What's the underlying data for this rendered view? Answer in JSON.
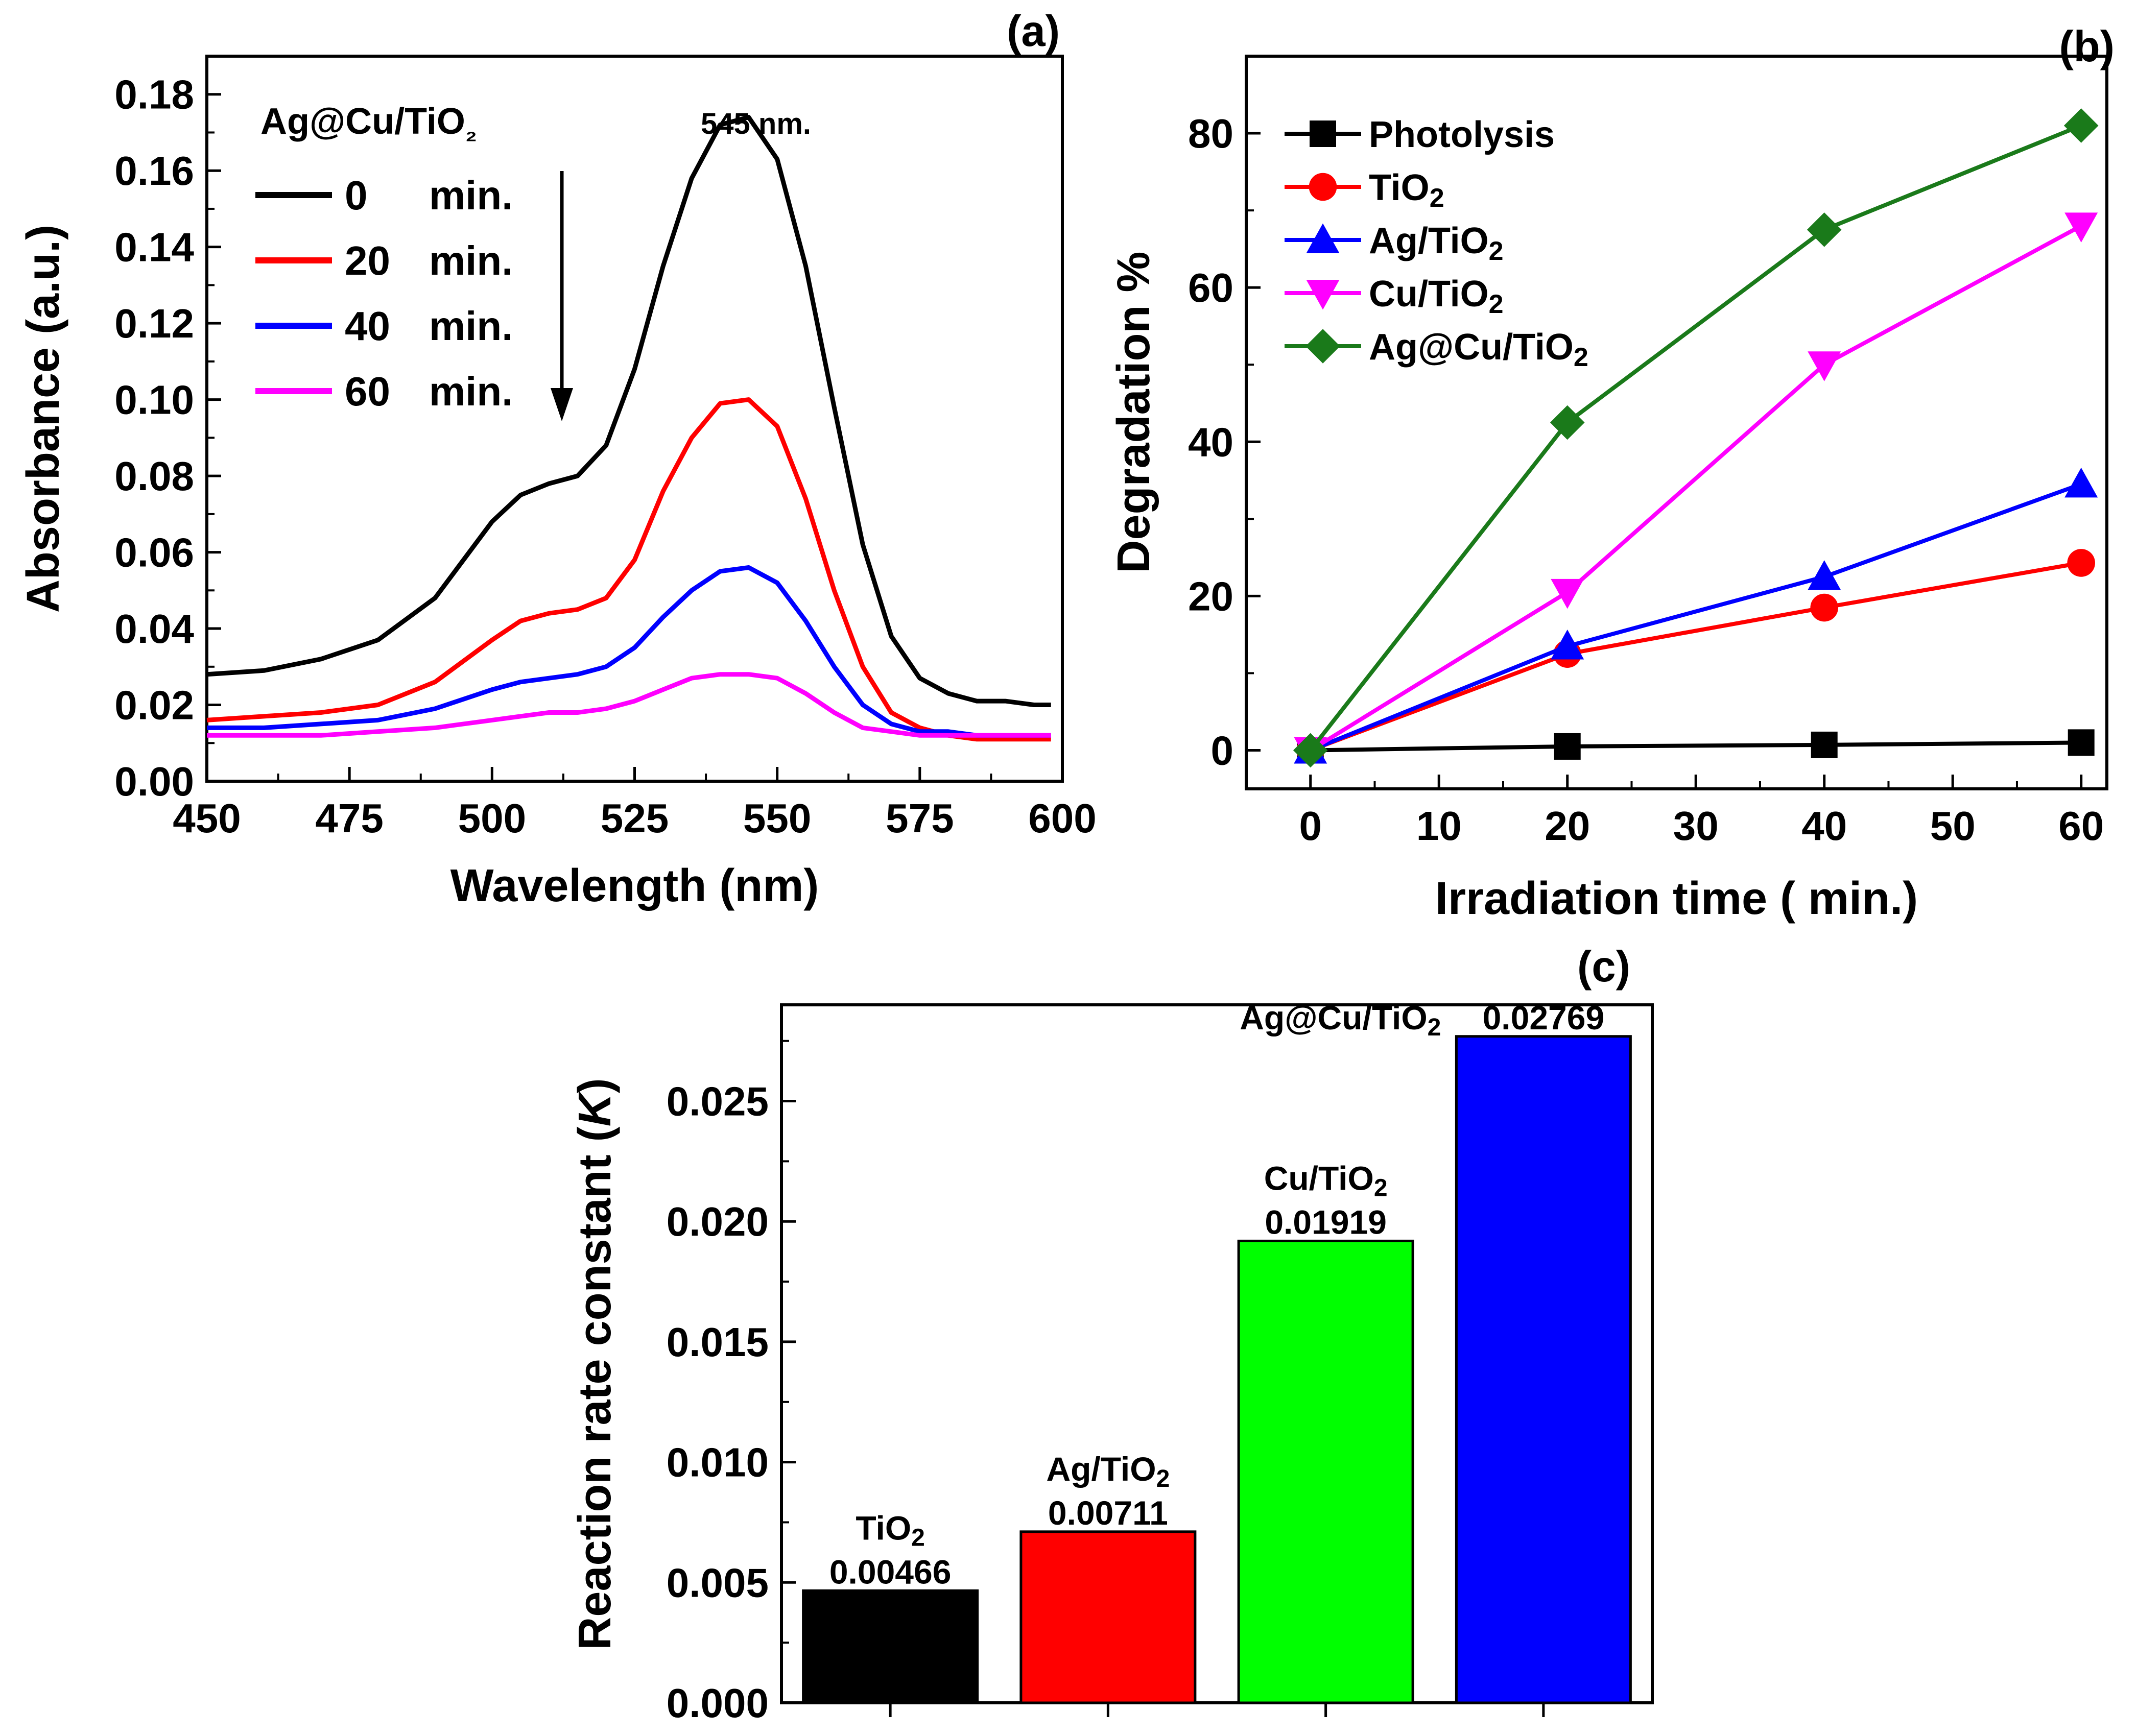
{
  "chart_data": [
    {
      "panel": "(a)",
      "type": "line",
      "title": "",
      "xlabel": "Wavelength (nm)",
      "ylabel": "Absorbance (a.u.)",
      "xlim": [
        450,
        600
      ],
      "ylim": [
        0,
        0.19
      ],
      "xticks": [
        "450",
        "475",
        "500",
        "525",
        "550",
        "575",
        "600"
      ],
      "yticks": [
        "0.00",
        "0.02",
        "0.04",
        "0.06",
        "0.08",
        "0.10",
        "0.12",
        "0.14",
        "0.16",
        "0.18"
      ],
      "legend_title": "Ag@Cu/TiO₂",
      "annotation": "545 nm.",
      "series": [
        {
          "name": "0",
          "unit": "min.",
          "color": "#000000",
          "x": [
            450,
            460,
            470,
            480,
            490,
            500,
            505,
            510,
            515,
            520,
            525,
            530,
            535,
            540,
            545,
            550,
            555,
            560,
            565,
            570,
            575,
            580,
            585,
            590,
            595,
            598
          ],
          "y": [
            0.028,
            0.029,
            0.032,
            0.037,
            0.048,
            0.068,
            0.075,
            0.078,
            0.08,
            0.088,
            0.108,
            0.135,
            0.158,
            0.172,
            0.174,
            0.163,
            0.135,
            0.098,
            0.062,
            0.038,
            0.027,
            0.023,
            0.021,
            0.021,
            0.02,
            0.02
          ]
        },
        {
          "name": "20",
          "unit": "min.",
          "color": "#ff0000",
          "x": [
            450,
            460,
            470,
            480,
            490,
            500,
            505,
            510,
            515,
            520,
            525,
            530,
            535,
            540,
            545,
            550,
            555,
            560,
            565,
            570,
            575,
            580,
            585,
            590,
            595,
            598
          ],
          "y": [
            0.016,
            0.017,
            0.018,
            0.02,
            0.026,
            0.037,
            0.042,
            0.044,
            0.045,
            0.048,
            0.058,
            0.076,
            0.09,
            0.099,
            0.1,
            0.093,
            0.074,
            0.05,
            0.03,
            0.018,
            0.014,
            0.012,
            0.011,
            0.011,
            0.011,
            0.011
          ]
        },
        {
          "name": "40",
          "unit": "min.",
          "color": "#0000ff",
          "x": [
            450,
            460,
            470,
            480,
            490,
            500,
            505,
            510,
            515,
            520,
            525,
            530,
            535,
            540,
            545,
            550,
            555,
            560,
            565,
            570,
            575,
            580,
            585,
            590,
            595,
            598
          ],
          "y": [
            0.014,
            0.014,
            0.015,
            0.016,
            0.019,
            0.024,
            0.026,
            0.027,
            0.028,
            0.03,
            0.035,
            0.043,
            0.05,
            0.055,
            0.056,
            0.052,
            0.042,
            0.03,
            0.02,
            0.015,
            0.013,
            0.013,
            0.012,
            0.012,
            0.012,
            0.012
          ]
        },
        {
          "name": "60",
          "unit": "min.",
          "color": "#ff00ff",
          "x": [
            450,
            460,
            470,
            480,
            490,
            500,
            505,
            510,
            515,
            520,
            525,
            530,
            535,
            540,
            545,
            550,
            555,
            560,
            565,
            570,
            575,
            580,
            585,
            590,
            595,
            598
          ],
          "y": [
            0.012,
            0.012,
            0.012,
            0.013,
            0.014,
            0.016,
            0.017,
            0.018,
            0.018,
            0.019,
            0.021,
            0.024,
            0.027,
            0.028,
            0.028,
            0.027,
            0.023,
            0.018,
            0.014,
            0.013,
            0.012,
            0.012,
            0.012,
            0.012,
            0.012,
            0.012
          ]
        }
      ]
    },
    {
      "panel": "(b)",
      "type": "line",
      "title": "",
      "xlabel": "Irradiation time ( min.)",
      "ylabel": "Degradation %",
      "xlim": [
        -5,
        62
      ],
      "ylim": [
        -5,
        90
      ],
      "xticks": [
        "0",
        "10",
        "20",
        "30",
        "40",
        "50",
        "60"
      ],
      "yticks": [
        "0",
        "20",
        "40",
        "60",
        "80"
      ],
      "series": [
        {
          "name": "Photolysis",
          "formula": false,
          "color": "#000000",
          "marker": "square",
          "x": [
            0,
            20,
            40,
            60
          ],
          "y": [
            0,
            0.5,
            0.7,
            1.0
          ]
        },
        {
          "name": "TiO",
          "formula": true,
          "color": "#ff0000",
          "marker": "circle",
          "x": [
            0,
            20,
            40,
            60
          ],
          "y": [
            0,
            12.5,
            18.5,
            24.3
          ]
        },
        {
          "name": "Ag/TiO",
          "formula": true,
          "color": "#0000ff",
          "marker": "triangle-up",
          "x": [
            0,
            20,
            40,
            60
          ],
          "y": [
            0,
            13.5,
            22.5,
            34.5
          ]
        },
        {
          "name": "Cu/TiO",
          "formula": true,
          "color": "#ff00ff",
          "marker": "triangle-down",
          "x": [
            0,
            20,
            40,
            60
          ],
          "y": [
            0,
            20.5,
            50.0,
            68.0
          ]
        },
        {
          "name": "Ag@Cu/TiO",
          "formula": true,
          "color": "#1a7a1a",
          "marker": "diamond",
          "x": [
            0,
            20,
            40,
            60
          ],
          "y": [
            0,
            42.5,
            67.5,
            81.0
          ]
        }
      ]
    },
    {
      "panel": "(c)",
      "type": "bar",
      "title": "",
      "xlabel": "",
      "ylabel_prefix": "Reaction rate constant (",
      "ylabel_italic": "K",
      "ylabel_suffix": ")",
      "ylim": [
        0,
        0.029
      ],
      "yticks": [
        "0.000",
        "0.005",
        "0.010",
        "0.015",
        "0.020",
        "0.025"
      ],
      "categories": [
        "TiO",
        "Ag/TiO",
        "Cu/TiO",
        "Ag@Cu/TiO"
      ],
      "subscript": "2",
      "values": [
        0.00466,
        0.00711,
        0.01919,
        0.02769
      ],
      "value_labels": [
        "0.00466",
        "0.00711",
        "0.01919",
        "0.02769"
      ],
      "colors": [
        "#000000",
        "#ff0000",
        "#00ff00",
        "#0000ff"
      ]
    }
  ]
}
